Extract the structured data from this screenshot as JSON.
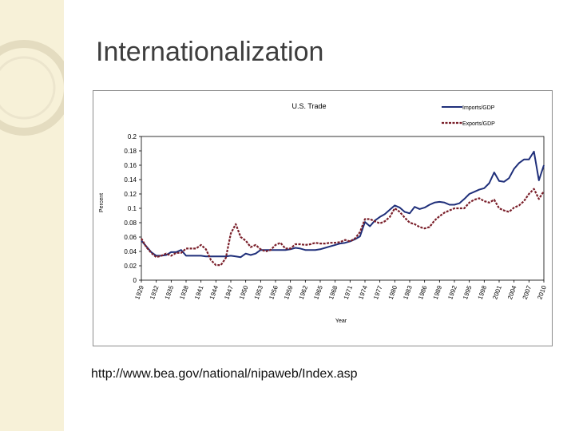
{
  "slide": {
    "title": "Internationalization",
    "source": "http://www.bea.gov/national/nipaweb/Index.asp"
  },
  "colors": {
    "strip": "#f7f1d8",
    "ring": "#e4dcc0",
    "imports": "#1f2f7a",
    "exports": "#7a1f2a"
  },
  "chart_data": {
    "type": "line",
    "title": "U.S. Trade",
    "xlabel": "Year",
    "ylabel": "Percent",
    "ylim": [
      0,
      0.2
    ],
    "y_ticks": [
      "0.2",
      "0.18",
      "0.16",
      "0.14",
      "0.12",
      "0.1",
      "0.08",
      "0.06",
      "0.04",
      "0.02",
      "0"
    ],
    "x_tick_labels": [
      "1929",
      "1932",
      "1935",
      "1938",
      "1941",
      "1944",
      "1947",
      "1950",
      "1953",
      "1956",
      "1959",
      "1962",
      "1965",
      "1968",
      "1971",
      "1974",
      "1977",
      "1980",
      "1983",
      "1986",
      "1989",
      "1992",
      "1995",
      "1998",
      "2001",
      "2004",
      "2007",
      "2010"
    ],
    "legend_position": "top-right",
    "grid": false,
    "x": [
      1929,
      1930,
      1931,
      1932,
      1933,
      1934,
      1935,
      1936,
      1937,
      1938,
      1939,
      1940,
      1941,
      1942,
      1943,
      1944,
      1945,
      1946,
      1947,
      1948,
      1949,
      1950,
      1951,
      1952,
      1953,
      1954,
      1955,
      1956,
      1957,
      1958,
      1959,
      1960,
      1961,
      1962,
      1963,
      1964,
      1965,
      1966,
      1967,
      1968,
      1969,
      1970,
      1971,
      1972,
      1973,
      1974,
      1975,
      1976,
      1977,
      1978,
      1979,
      1980,
      1981,
      1982,
      1983,
      1984,
      1985,
      1986,
      1987,
      1988,
      1989,
      1990,
      1991,
      1992,
      1993,
      1994,
      1995,
      1996,
      1997,
      1998,
      1999,
      2000,
      2001,
      2002,
      2003,
      2004,
      2005,
      2006,
      2007,
      2008,
      2009,
      2010
    ],
    "series": [
      {
        "name": "Imports/GDP",
        "values": [
          0.055,
          0.047,
          0.039,
          0.034,
          0.034,
          0.035,
          0.039,
          0.039,
          0.042,
          0.034,
          0.034,
          0.034,
          0.034,
          0.033,
          0.033,
          0.033,
          0.033,
          0.033,
          0.034,
          0.033,
          0.032,
          0.037,
          0.035,
          0.037,
          0.042,
          0.042,
          0.042,
          0.042,
          0.042,
          0.042,
          0.043,
          0.045,
          0.044,
          0.042,
          0.042,
          0.042,
          0.043,
          0.045,
          0.047,
          0.049,
          0.051,
          0.052,
          0.054,
          0.057,
          0.061,
          0.081,
          0.075,
          0.083,
          0.088,
          0.092,
          0.098,
          0.104,
          0.101,
          0.095,
          0.093,
          0.102,
          0.099,
          0.101,
          0.105,
          0.108,
          0.109,
          0.108,
          0.105,
          0.105,
          0.107,
          0.113,
          0.12,
          0.123,
          0.126,
          0.128,
          0.135,
          0.15,
          0.138,
          0.137,
          0.142,
          0.155,
          0.163,
          0.168,
          0.168,
          0.179,
          0.139,
          0.16
        ]
      },
      {
        "name": "Exports/GDP",
        "values": [
          0.058,
          0.046,
          0.038,
          0.032,
          0.034,
          0.037,
          0.034,
          0.038,
          0.038,
          0.044,
          0.044,
          0.044,
          0.049,
          0.043,
          0.028,
          0.021,
          0.021,
          0.031,
          0.065,
          0.078,
          0.06,
          0.055,
          0.046,
          0.049,
          0.043,
          0.04,
          0.042,
          0.049,
          0.052,
          0.044,
          0.044,
          0.05,
          0.05,
          0.049,
          0.05,
          0.052,
          0.051,
          0.051,
          0.052,
          0.052,
          0.053,
          0.056,
          0.054,
          0.058,
          0.067,
          0.085,
          0.085,
          0.082,
          0.079,
          0.082,
          0.088,
          0.1,
          0.095,
          0.087,
          0.08,
          0.078,
          0.074,
          0.072,
          0.074,
          0.083,
          0.089,
          0.094,
          0.097,
          0.1,
          0.1,
          0.1,
          0.108,
          0.112,
          0.114,
          0.11,
          0.108,
          0.112,
          0.1,
          0.097,
          0.095,
          0.101,
          0.104,
          0.11,
          0.12,
          0.127,
          0.113,
          0.124
        ]
      }
    ]
  }
}
